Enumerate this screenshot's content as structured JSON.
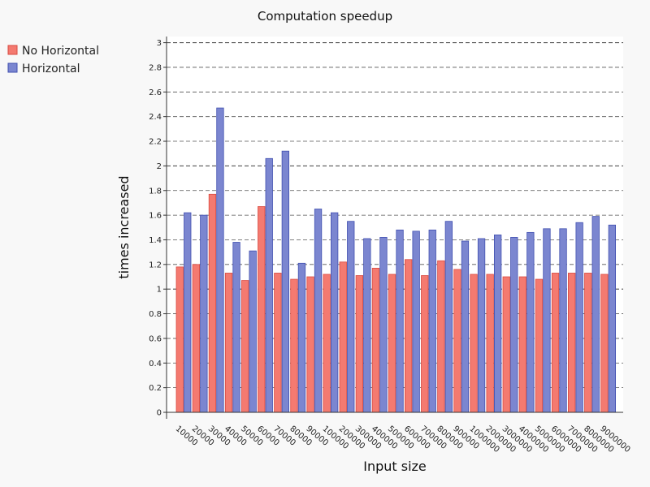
{
  "chart_data": {
    "type": "bar",
    "title": "Computation speedup",
    "xlabel": "Input size",
    "ylabel": "times increased",
    "ylim": [
      0,
      3.05
    ],
    "y_ticks": [
      "0",
      "0.2",
      "0.4",
      "0.6",
      "0.8",
      "1",
      "1.2",
      "1.4",
      "1.6",
      "1.8",
      "2",
      "2.2",
      "2.4",
      "2.6",
      "2.8",
      "3"
    ],
    "grid": true,
    "legend_position": "top-left",
    "categories": [
      "10000",
      "20000",
      "30000",
      "40000",
      "50000",
      "60000",
      "70000",
      "80000",
      "90000",
      "100000",
      "200000",
      "300000",
      "400000",
      "500000",
      "600000",
      "700000",
      "800000",
      "900000",
      "1000000",
      "2000000",
      "3000000",
      "4000000",
      "5000000",
      "6000000",
      "7000000",
      "8000000",
      "9000000"
    ],
    "series": [
      {
        "name": "No Horizontal",
        "color": "#f47a70",
        "stroke": "#d94b42",
        "values": [
          1.18,
          1.2,
          1.77,
          1.13,
          1.07,
          1.67,
          1.13,
          1.08,
          1.1,
          1.12,
          1.22,
          1.11,
          1.17,
          1.12,
          1.24,
          1.11,
          1.23,
          1.16,
          1.12,
          1.12,
          1.1,
          1.1,
          1.08,
          1.13,
          1.13,
          1.13,
          1.12
        ]
      },
      {
        "name": "Horizontal",
        "color": "#7b86d0",
        "stroke": "#4150b0",
        "values": [
          1.62,
          1.6,
          2.47,
          1.38,
          1.31,
          2.06,
          2.12,
          1.21,
          1.65,
          1.62,
          1.55,
          1.41,
          1.42,
          1.48,
          1.47,
          1.48,
          1.55,
          1.39,
          1.41,
          1.44,
          1.42,
          1.46,
          1.49,
          1.49,
          1.54,
          1.59,
          1.52
        ]
      }
    ]
  }
}
